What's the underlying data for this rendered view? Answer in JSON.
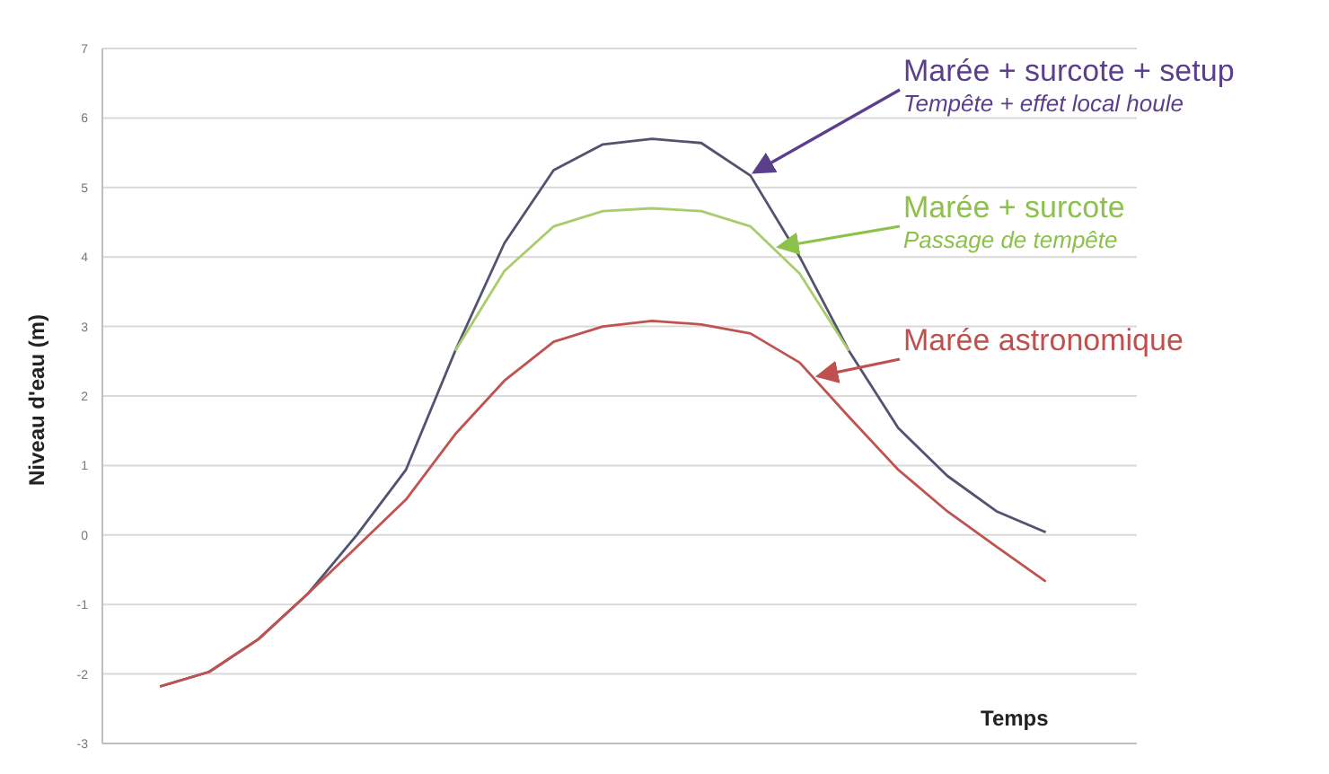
{
  "chart_data": {
    "type": "line",
    "xlabel": "Temps",
    "ylabel": "Niveau d'eau (m)",
    "categories": [
      null,
      null,
      null,
      null,
      null,
      null,
      null,
      null,
      null,
      null,
      null,
      null,
      null,
      null,
      null,
      null,
      null,
      null,
      null
    ],
    "series": [
      {
        "name": "Marée + surcote + setup",
        "color": "#53526f",
        "values": [
          -2.18,
          -1.97,
          -1.5,
          -0.85,
          0.0,
          0.94,
          2.65,
          4.2,
          5.25,
          5.62,
          5.7,
          5.64,
          5.17,
          4.0,
          2.65,
          1.54,
          0.85,
          0.34,
          0.04
        ]
      },
      {
        "name": "Marée + surcote",
        "color": "#a9cc6e",
        "values": [
          null,
          null,
          null,
          null,
          null,
          null,
          2.65,
          3.8,
          4.44,
          4.66,
          4.7,
          4.66,
          4.44,
          3.76,
          2.65,
          null,
          null,
          null,
          null
        ]
      },
      {
        "name": "Marée astronomique",
        "color": "#bf5350",
        "values": [
          -2.18,
          -1.97,
          -1.5,
          -0.85,
          -0.17,
          0.51,
          1.45,
          2.22,
          2.78,
          3.0,
          3.08,
          3.03,
          2.9,
          2.48,
          1.7,
          0.94,
          0.34,
          -0.17,
          -0.67
        ]
      }
    ],
    "annotations": [
      "Tempête + effet local houle",
      "Passage de tempête"
    ],
    "ylim": [
      -3,
      7
    ],
    "yticks": [
      -3,
      -2,
      -1,
      0,
      1,
      2,
      3,
      4,
      5,
      6,
      7
    ],
    "grid": "y",
    "marker": "none",
    "line_style": "solid"
  }
}
